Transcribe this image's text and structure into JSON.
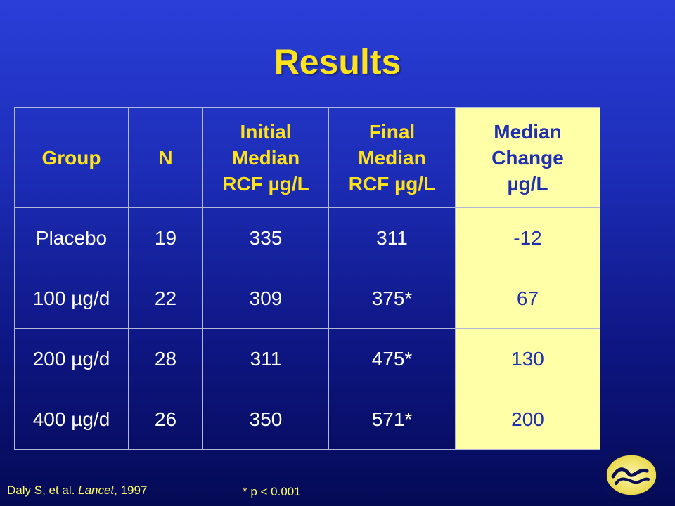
{
  "slide": {
    "title": "Results"
  },
  "table": {
    "headers": [
      {
        "l1": "Group",
        "l2": "",
        "l3": ""
      },
      {
        "l1": "N",
        "l2": "",
        "l3": ""
      },
      {
        "l1": "Initial",
        "l2": "Median",
        "l3": "RCF µg/L"
      },
      {
        "l1": "Final",
        "l2": "Median",
        "l3": "RCF µg/L"
      },
      {
        "l1": "Median",
        "l2": "Change",
        "l3": "µg/L"
      }
    ],
    "rows": [
      [
        "Placebo",
        "19",
        "335",
        "311",
        "-12"
      ],
      [
        "100 µg/d",
        "22",
        "309",
        "375*",
        "67"
      ],
      [
        "200 µg/d",
        "28",
        "311",
        "475*",
        "130"
      ],
      [
        "400 µg/d",
        "26",
        "350",
        "571*",
        "200"
      ]
    ]
  },
  "footer": {
    "citation_authors": "Daly S, et al. ",
    "citation_journal": "Lancet",
    "citation_year": ", 1997",
    "significance": "* p < 0.001"
  },
  "colors": {
    "title": "#ffe31a",
    "highlight_bg": "#ffffa8",
    "highlight_text": "#1f2fb0"
  },
  "seal": {
    "icon": "hhs-seal-icon"
  }
}
